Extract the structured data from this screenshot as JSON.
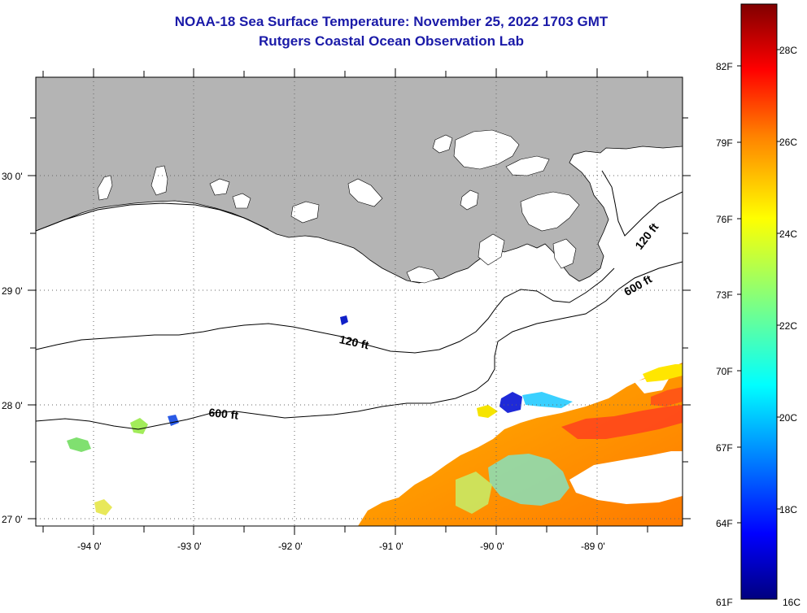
{
  "title": "NOAA-18 Sea Surface Temperature:  November 25, 2022 1703 GMT",
  "subtitle": "Rutgers Coastal Ocean Observation Lab",
  "map": {
    "lon_labels": [
      "-94 0'",
      "-93 0'",
      "-92 0'",
      "-91 0'",
      "-90 0'",
      "-89 0'"
    ],
    "lat_labels": [
      "30 0'",
      "29 0'",
      "28 0'",
      "27 0'"
    ],
    "grid": true,
    "land_color": "#b4b4b4",
    "contour_labels": [
      "120 ft",
      "600 ft",
      "120 ft",
      "600 ft"
    ]
  },
  "colorbar": {
    "fahrenheit_labels": [
      "82F",
      "79F",
      "76F",
      "73F",
      "70F",
      "67F",
      "64F",
      "61F"
    ],
    "celsius_labels": [
      "28C",
      "26C",
      "24C",
      "22C",
      "20C",
      "18C",
      "16C"
    ],
    "range_celsius": [
      16,
      29.5
    ],
    "colormap": "jet"
  }
}
